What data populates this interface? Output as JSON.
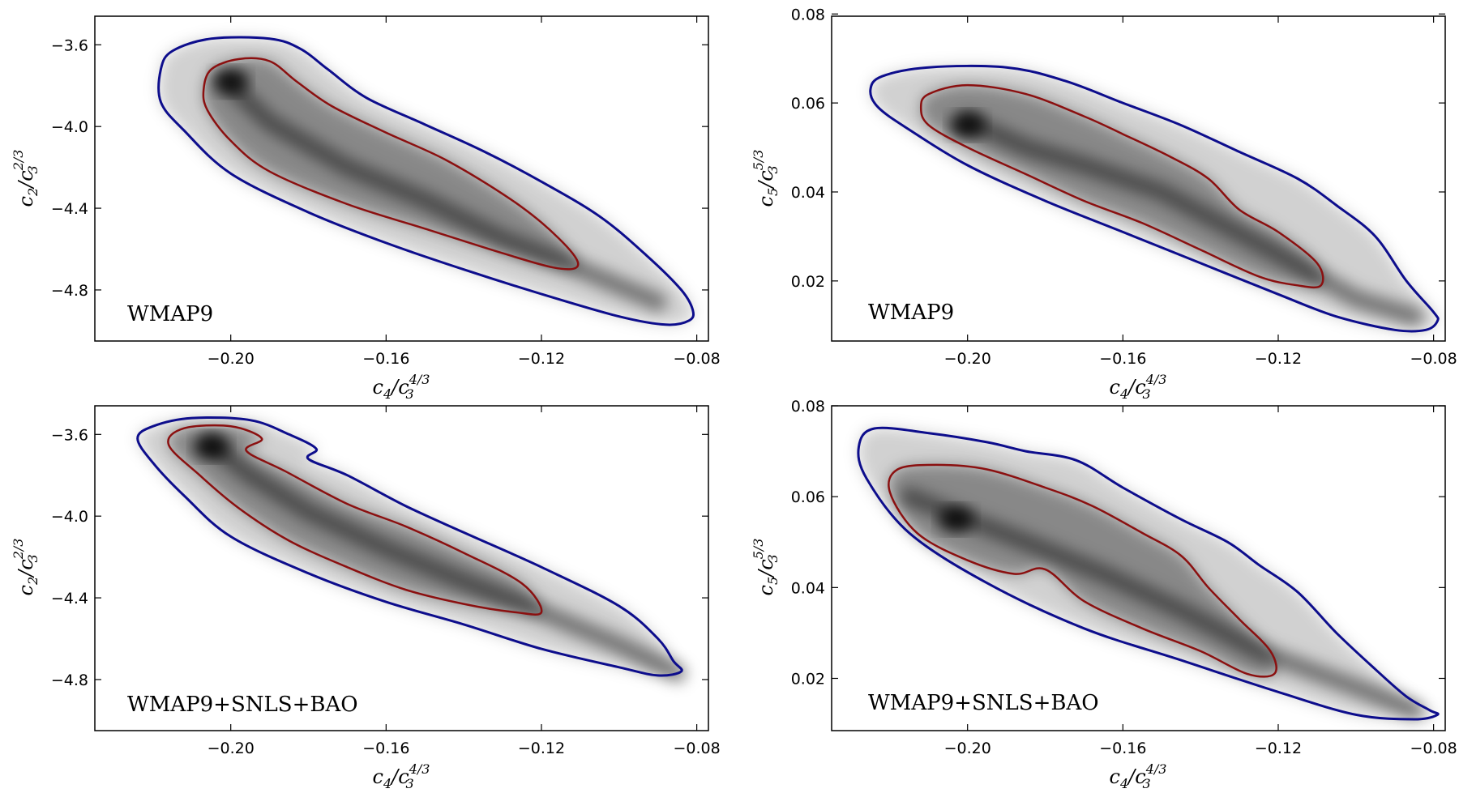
{
  "colors": {
    "contour_95": "#0d0d8c",
    "contour_68": "#8b1010",
    "density": "#000000"
  },
  "chart_data": [
    {
      "type": "contour",
      "panel": "top-left",
      "annotation": "WMAP9",
      "xlabel": {
        "base": "c",
        "sub": "4",
        "slash": "/",
        "base2": "c",
        "sub2": "3",
        "sup": "4/3"
      },
      "ylabel": {
        "base": "c",
        "sub": "2",
        "slash": "/",
        "base2": "c",
        "sub2": "3",
        "sup": "2/3"
      },
      "xlim": [
        -0.235,
        -0.077
      ],
      "ylim": [
        -5.05,
        -3.46
      ],
      "xticks": [
        -0.2,
        -0.16,
        -0.12,
        -0.08
      ],
      "xtick_labels": [
        "−0.20",
        "−0.16",
        "−0.12",
        "−0.08"
      ],
      "yticks": [
        -3.6,
        -4.0,
        -4.4,
        -4.8
      ],
      "ytick_labels": [
        "−3.6",
        "−4.0",
        "−4.4",
        "−4.8"
      ],
      "ridge": [
        [
          -0.2,
          -3.8
        ],
        [
          -0.19,
          -3.98
        ],
        [
          -0.17,
          -4.2
        ],
        [
          -0.15,
          -4.36
        ],
        [
          -0.13,
          -4.55
        ],
        [
          -0.115,
          -4.66
        ],
        [
          -0.09,
          -4.86
        ]
      ],
      "density_peak": [
        -0.2,
        -3.78
      ],
      "contour_95": [
        [
          -0.218,
          -3.72
        ],
        [
          -0.215,
          -3.63
        ],
        [
          -0.205,
          -3.57
        ],
        [
          -0.19,
          -3.57
        ],
        [
          -0.182,
          -3.62
        ],
        [
          -0.175,
          -3.72
        ],
        [
          -0.165,
          -3.86
        ],
        [
          -0.15,
          -3.99
        ],
        [
          -0.135,
          -4.12
        ],
        [
          -0.12,
          -4.27
        ],
        [
          -0.105,
          -4.44
        ],
        [
          -0.093,
          -4.63
        ],
        [
          -0.084,
          -4.8
        ],
        [
          -0.081,
          -4.9
        ],
        [
          -0.082,
          -4.95
        ],
        [
          -0.088,
          -4.97
        ],
        [
          -0.1,
          -4.93
        ],
        [
          -0.12,
          -4.82
        ],
        [
          -0.14,
          -4.7
        ],
        [
          -0.16,
          -4.57
        ],
        [
          -0.18,
          -4.42
        ],
        [
          -0.2,
          -4.23
        ],
        [
          -0.212,
          -4.02
        ],
        [
          -0.218,
          -3.88
        ]
      ],
      "contour_68": [
        [
          -0.207,
          -3.82
        ],
        [
          -0.205,
          -3.72
        ],
        [
          -0.198,
          -3.67
        ],
        [
          -0.19,
          -3.68
        ],
        [
          -0.183,
          -3.78
        ],
        [
          -0.174,
          -3.9
        ],
        [
          -0.16,
          -4.03
        ],
        [
          -0.145,
          -4.16
        ],
        [
          -0.13,
          -4.33
        ],
        [
          -0.12,
          -4.47
        ],
        [
          -0.112,
          -4.62
        ],
        [
          -0.111,
          -4.69
        ],
        [
          -0.117,
          -4.69
        ],
        [
          -0.13,
          -4.62
        ],
        [
          -0.15,
          -4.5
        ],
        [
          -0.17,
          -4.38
        ],
        [
          -0.19,
          -4.22
        ],
        [
          -0.2,
          -4.07
        ],
        [
          -0.206,
          -3.92
        ]
      ]
    },
    {
      "type": "contour",
      "panel": "top-right",
      "annotation": "WMAP9",
      "xlabel": {
        "base": "c",
        "sub": "4",
        "slash": "/",
        "base2": "c",
        "sub2": "3",
        "sup": "4/3"
      },
      "ylabel": {
        "base": "c",
        "sub": "5",
        "slash": "/",
        "base2": "c",
        "sub2": "3",
        "sup": "5/3"
      },
      "xlim": [
        -0.235,
        -0.077
      ],
      "ylim": [
        0.0065,
        0.0795
      ],
      "xticks": [
        -0.2,
        -0.16,
        -0.12,
        -0.08
      ],
      "xtick_labels": [
        "−0.20",
        "−0.16",
        "−0.12",
        "−0.08"
      ],
      "yticks": [
        0.02,
        0.04,
        0.06,
        0.08
      ],
      "ytick_labels": [
        "0.02",
        "0.04",
        "0.06",
        "0.08"
      ],
      "ridge": [
        [
          -0.2,
          0.056
        ],
        [
          -0.185,
          0.05
        ],
        [
          -0.17,
          0.046
        ],
        [
          -0.15,
          0.04
        ],
        [
          -0.135,
          0.033
        ],
        [
          -0.12,
          0.026
        ],
        [
          -0.1,
          0.016
        ],
        [
          -0.085,
          0.012
        ]
      ],
      "density_peak": [
        -0.2,
        0.055
      ],
      "contour_95": [
        [
          -0.225,
          0.063
        ],
        [
          -0.222,
          0.066
        ],
        [
          -0.21,
          0.068
        ],
        [
          -0.19,
          0.068
        ],
        [
          -0.175,
          0.065
        ],
        [
          -0.16,
          0.06
        ],
        [
          -0.145,
          0.055
        ],
        [
          -0.13,
          0.049
        ],
        [
          -0.115,
          0.043
        ],
        [
          -0.105,
          0.037
        ],
        [
          -0.095,
          0.03
        ],
        [
          -0.087,
          0.02
        ],
        [
          -0.08,
          0.013
        ],
        [
          -0.079,
          0.011
        ],
        [
          -0.082,
          0.009
        ],
        [
          -0.09,
          0.009
        ],
        [
          -0.105,
          0.012
        ],
        [
          -0.12,
          0.017
        ],
        [
          -0.14,
          0.024
        ],
        [
          -0.16,
          0.031
        ],
        [
          -0.18,
          0.038
        ],
        [
          -0.2,
          0.046
        ],
        [
          -0.215,
          0.054
        ],
        [
          -0.223,
          0.059
        ]
      ],
      "contour_68": [
        [
          -0.212,
          0.059
        ],
        [
          -0.21,
          0.062
        ],
        [
          -0.2,
          0.064
        ],
        [
          -0.185,
          0.062
        ],
        [
          -0.17,
          0.057
        ],
        [
          -0.16,
          0.053
        ],
        [
          -0.148,
          0.048
        ],
        [
          -0.138,
          0.043
        ],
        [
          -0.13,
          0.036
        ],
        [
          -0.12,
          0.031
        ],
        [
          -0.11,
          0.024
        ],
        [
          -0.109,
          0.019
        ],
        [
          -0.115,
          0.019
        ],
        [
          -0.125,
          0.021
        ],
        [
          -0.14,
          0.027
        ],
        [
          -0.155,
          0.033
        ],
        [
          -0.17,
          0.038
        ],
        [
          -0.185,
          0.044
        ],
        [
          -0.2,
          0.05
        ],
        [
          -0.21,
          0.055
        ]
      ]
    },
    {
      "type": "contour",
      "panel": "bottom-left",
      "annotation": "WMAP9+SNLS+BAO",
      "xlabel": {
        "base": "c",
        "sub": "4",
        "slash": "/",
        "base2": "c",
        "sub2": "3",
        "sup": "4/3"
      },
      "ylabel": {
        "base": "c",
        "sub": "2",
        "slash": "/",
        "base2": "c",
        "sub2": "3",
        "sup": "2/3"
      },
      "xlim": [
        -0.235,
        -0.077
      ],
      "ylim": [
        -5.05,
        -3.46
      ],
      "xticks": [
        -0.2,
        -0.16,
        -0.12,
        -0.08
      ],
      "xtick_labels": [
        "−0.20",
        "−0.16",
        "−0.12",
        "−0.08"
      ],
      "yticks": [
        -3.6,
        -4.0,
        -4.4,
        -4.8
      ],
      "ytick_labels": [
        "−3.6",
        "−4.0",
        "−4.4",
        "−4.8"
      ],
      "ridge": [
        [
          -0.205,
          -3.65
        ],
        [
          -0.195,
          -3.8
        ],
        [
          -0.18,
          -3.98
        ],
        [
          -0.16,
          -4.16
        ],
        [
          -0.14,
          -4.32
        ],
        [
          -0.12,
          -4.47
        ],
        [
          -0.1,
          -4.63
        ],
        [
          -0.085,
          -4.77
        ]
      ],
      "density_peak": [
        -0.205,
        -3.66
      ],
      "contour_95": [
        [
          -0.224,
          -3.62
        ],
        [
          -0.22,
          -3.56
        ],
        [
          -0.21,
          -3.52
        ],
        [
          -0.195,
          -3.53
        ],
        [
          -0.185,
          -3.6
        ],
        [
          -0.178,
          -3.67
        ],
        [
          -0.18,
          -3.72
        ],
        [
          -0.17,
          -3.8
        ],
        [
          -0.155,
          -3.95
        ],
        [
          -0.14,
          -4.08
        ],
        [
          -0.12,
          -4.25
        ],
        [
          -0.1,
          -4.44
        ],
        [
          -0.09,
          -4.6
        ],
        [
          -0.086,
          -4.71
        ],
        [
          -0.084,
          -4.76
        ],
        [
          -0.09,
          -4.78
        ],
        [
          -0.1,
          -4.74
        ],
        [
          -0.12,
          -4.65
        ],
        [
          -0.14,
          -4.53
        ],
        [
          -0.16,
          -4.42
        ],
        [
          -0.18,
          -4.28
        ],
        [
          -0.2,
          -4.1
        ],
        [
          -0.212,
          -3.9
        ],
        [
          -0.22,
          -3.74
        ]
      ],
      "contour_68": [
        [
          -0.216,
          -3.65
        ],
        [
          -0.212,
          -3.57
        ],
        [
          -0.2,
          -3.56
        ],
        [
          -0.192,
          -3.62
        ],
        [
          -0.196,
          -3.68
        ],
        [
          -0.186,
          -3.78
        ],
        [
          -0.17,
          -3.94
        ],
        [
          -0.155,
          -4.05
        ],
        [
          -0.14,
          -4.18
        ],
        [
          -0.125,
          -4.33
        ],
        [
          -0.12,
          -4.47
        ],
        [
          -0.127,
          -4.47
        ],
        [
          -0.14,
          -4.43
        ],
        [
          -0.155,
          -4.36
        ],
        [
          -0.17,
          -4.25
        ],
        [
          -0.185,
          -4.12
        ],
        [
          -0.198,
          -3.96
        ],
        [
          -0.208,
          -3.8
        ]
      ]
    },
    {
      "type": "contour",
      "panel": "bottom-right",
      "annotation": "WMAP9+SNLS+BAO",
      "xlabel": {
        "base": "c",
        "sub": "4",
        "slash": "/",
        "base2": "c",
        "sub2": "3",
        "sup": "4/3"
      },
      "ylabel": {
        "base": "c",
        "sub": "5",
        "slash": "/",
        "base2": "c",
        "sub2": "3",
        "sup": "5/3"
      },
      "xlim": [
        -0.235,
        -0.077
      ],
      "ylim": [
        0.0085,
        0.08
      ],
      "xticks": [
        -0.2,
        -0.16,
        -0.12,
        -0.08
      ],
      "xtick_labels": [
        "−0.20",
        "−0.16",
        "−0.12",
        "−0.08"
      ],
      "yticks": [
        0.02,
        0.04,
        0.06,
        0.08
      ],
      "ytick_labels": [
        "0.02",
        "0.04",
        "0.06",
        "0.08"
      ],
      "ridge": [
        [
          -0.215,
          0.06
        ],
        [
          -0.2,
          0.055
        ],
        [
          -0.185,
          0.05
        ],
        [
          -0.165,
          0.043
        ],
        [
          -0.145,
          0.035
        ],
        [
          -0.125,
          0.026
        ],
        [
          -0.1,
          0.018
        ],
        [
          -0.085,
          0.013
        ]
      ],
      "density_peak": [
        -0.203,
        0.055
      ],
      "contour_95": [
        [
          -0.228,
          0.071
        ],
        [
          -0.224,
          0.075
        ],
        [
          -0.21,
          0.074
        ],
        [
          -0.195,
          0.072
        ],
        [
          -0.185,
          0.07
        ],
        [
          -0.172,
          0.068
        ],
        [
          -0.16,
          0.062
        ],
        [
          -0.145,
          0.055
        ],
        [
          -0.133,
          0.05
        ],
        [
          -0.125,
          0.045
        ],
        [
          -0.115,
          0.039
        ],
        [
          -0.105,
          0.03
        ],
        [
          -0.095,
          0.022
        ],
        [
          -0.087,
          0.016
        ],
        [
          -0.081,
          0.013
        ],
        [
          -0.079,
          0.012
        ],
        [
          -0.085,
          0.011
        ],
        [
          -0.1,
          0.012
        ],
        [
          -0.12,
          0.017
        ],
        [
          -0.145,
          0.024
        ],
        [
          -0.17,
          0.031
        ],
        [
          -0.195,
          0.041
        ],
        [
          -0.215,
          0.052
        ],
        [
          -0.226,
          0.064
        ]
      ],
      "contour_68": [
        [
          -0.22,
          0.061
        ],
        [
          -0.218,
          0.066
        ],
        [
          -0.208,
          0.067
        ],
        [
          -0.195,
          0.066
        ],
        [
          -0.18,
          0.062
        ],
        [
          -0.168,
          0.058
        ],
        [
          -0.155,
          0.052
        ],
        [
          -0.145,
          0.047
        ],
        [
          -0.138,
          0.04
        ],
        [
          -0.13,
          0.033
        ],
        [
          -0.122,
          0.026
        ],
        [
          -0.121,
          0.021
        ],
        [
          -0.128,
          0.021
        ],
        [
          -0.14,
          0.026
        ],
        [
          -0.155,
          0.031
        ],
        [
          -0.17,
          0.037
        ],
        [
          -0.18,
          0.044
        ],
        [
          -0.188,
          0.043
        ],
        [
          -0.2,
          0.046
        ],
        [
          -0.213,
          0.052
        ]
      ]
    }
  ]
}
